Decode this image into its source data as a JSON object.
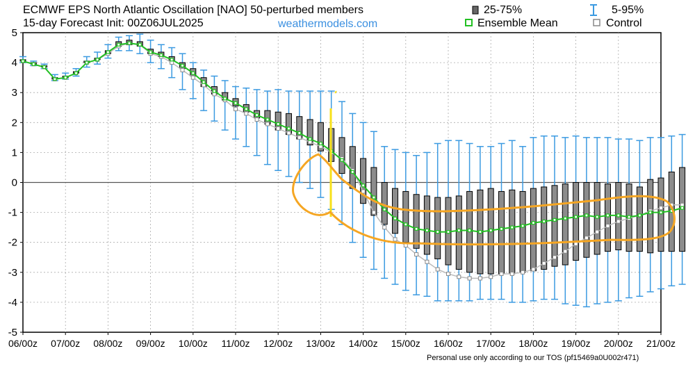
{
  "header": {
    "title_line1": "ECMWF EPS North Atlantic Oscillation [NAO]  50-perturbed members",
    "title_line2": "15-day Forecast Init: 00Z06JUL2025",
    "site": "weathermodels.com"
  },
  "legend": {
    "box": "25-75%",
    "whisker": "5-95%",
    "mean": "Ensemble Mean",
    "control": "Control"
  },
  "footer": "Personal use only according to our TOS (pf15469a0U002r471)",
  "colors": {
    "box_fill": "#8c8c8c",
    "whisker": "#3b9ae1",
    "mean": "#22c022",
    "control": "#999999",
    "annotation_orange": "#f5a623",
    "annotation_yellow": "#f7e01a"
  },
  "chart_data": {
    "type": "box",
    "ylim": [
      -5,
      5
    ],
    "yticks": [
      5,
      4,
      3,
      2,
      1,
      0,
      -1,
      -2,
      -3,
      -4,
      -5
    ],
    "xlim": [
      0,
      15
    ],
    "xtick_labels": [
      "06/00z",
      "07/00z",
      "08/00z",
      "09/00z",
      "10/00z",
      "11/00z",
      "12/00z",
      "13/00z",
      "14/00z",
      "15/00z",
      "16/00z",
      "17/00z",
      "18/00z",
      "19/00z",
      "20/00z",
      "21/00z"
    ],
    "step_days": 0.25,
    "series": [
      {
        "name": "25-75%",
        "kind": "box_range",
        "q25": [
          4.05,
          3.95,
          3.85,
          3.45,
          3.5,
          3.65,
          4.0,
          4.1,
          4.3,
          4.55,
          4.6,
          4.55,
          4.3,
          4.2,
          4.05,
          3.8,
          3.55,
          3.2,
          2.95,
          2.75,
          2.55,
          2.35,
          2.15,
          1.95,
          1.75,
          1.6,
          1.45,
          1.25,
          1.05,
          0.7,
          0.3,
          -0.2,
          -0.7,
          -1.1,
          -1.4,
          -1.7,
          -2.0,
          -2.2,
          -2.4,
          -2.55,
          -2.75,
          -2.9,
          -3.0,
          -3.05,
          -3.05,
          -3.05,
          -3.05,
          -3.0,
          -2.95,
          -2.9,
          -2.8,
          -2.75,
          -2.6,
          -2.5,
          -2.4,
          -2.3,
          -2.25,
          -2.3,
          -2.3,
          -2.35,
          -2.3,
          -2.3,
          -2.3
        ]
      },
      {
        "name": "25-75% upper",
        "kind": "box_upper",
        "q75": [
          4.1,
          4.0,
          3.9,
          3.5,
          3.55,
          3.7,
          4.05,
          4.15,
          4.4,
          4.7,
          4.75,
          4.7,
          4.45,
          4.35,
          4.2,
          4.0,
          3.8,
          3.5,
          3.2,
          3.0,
          2.8,
          2.6,
          2.4,
          2.4,
          2.35,
          2.3,
          2.2,
          2.1,
          2.0,
          1.8,
          1.5,
          1.2,
          0.8,
          0.5,
          0.0,
          -0.2,
          -0.3,
          -0.4,
          -0.45,
          -0.5,
          -0.5,
          -0.45,
          -0.3,
          -0.25,
          -0.2,
          -0.3,
          -0.25,
          -0.3,
          -0.2,
          -0.15,
          -0.1,
          -0.05,
          0.0,
          0.0,
          0.0,
          -0.05,
          0.0,
          -0.05,
          -0.15,
          0.1,
          0.15,
          0.35,
          0.5
        ]
      },
      {
        "name": "5-95%",
        "kind": "whisker",
        "p5": [
          4.0,
          3.9,
          3.8,
          3.4,
          3.45,
          3.55,
          3.85,
          3.95,
          4.15,
          4.4,
          4.4,
          4.3,
          4.0,
          3.8,
          3.5,
          3.1,
          2.8,
          2.4,
          2.05,
          1.75,
          1.45,
          1.2,
          0.9,
          0.6,
          0.4,
          0.2,
          0.0,
          -0.2,
          -0.5,
          -0.9,
          -1.4,
          -2.0,
          -2.5,
          -2.9,
          -3.2,
          -3.4,
          -3.6,
          -3.75,
          -3.8,
          -3.95,
          -3.95,
          -3.95,
          -3.95,
          -3.9,
          -3.9,
          -3.9,
          -4.0,
          -4.0,
          -3.95,
          -3.9,
          -3.9,
          -4.05,
          -4.1,
          -4.15,
          -4.05,
          -4.0,
          -3.95,
          -3.85,
          -3.8,
          -3.65,
          -3.55,
          -3.45,
          -3.4
        ],
        "p95": [
          4.2,
          4.05,
          3.95,
          3.6,
          3.65,
          3.8,
          4.2,
          4.35,
          4.6,
          4.85,
          4.9,
          4.95,
          4.75,
          4.6,
          4.5,
          4.3,
          4.0,
          3.75,
          3.55,
          3.4,
          3.2,
          3.15,
          3.1,
          3.05,
          3.1,
          3.05,
          3.05,
          3.05,
          3.05,
          3.05,
          2.7,
          2.3,
          2.0,
          1.7,
          1.2,
          1.1,
          1.0,
          0.9,
          1.0,
          1.3,
          1.4,
          1.4,
          1.3,
          1.2,
          1.2,
          1.3,
          1.4,
          1.2,
          1.5,
          1.55,
          1.55,
          1.5,
          1.55,
          1.5,
          1.5,
          1.5,
          1.45,
          1.45,
          1.4,
          1.5,
          1.5,
          1.55,
          1.6
        ]
      },
      {
        "name": "Ensemble Mean",
        "kind": "line",
        "values": [
          4.05,
          3.95,
          3.85,
          3.45,
          3.5,
          3.65,
          4.0,
          4.1,
          4.35,
          4.6,
          4.65,
          4.6,
          4.35,
          4.25,
          4.1,
          3.9,
          3.65,
          3.35,
          3.05,
          2.8,
          2.65,
          2.45,
          2.25,
          2.1,
          1.95,
          1.8,
          1.65,
          1.45,
          1.3,
          1.05,
          0.75,
          0.35,
          -0.1,
          -0.5,
          -0.9,
          -1.2,
          -1.4,
          -1.55,
          -1.6,
          -1.65,
          -1.65,
          -1.6,
          -1.6,
          -1.65,
          -1.6,
          -1.55,
          -1.5,
          -1.45,
          -1.35,
          -1.3,
          -1.25,
          -1.2,
          -1.15,
          -1.1,
          -1.15,
          -1.1,
          -1.1,
          -1.15,
          -1.1,
          -1.0,
          -1.0,
          -0.95,
          -0.85
        ]
      },
      {
        "name": "Control",
        "kind": "line",
        "values": [
          4.05,
          3.95,
          3.85,
          3.45,
          3.5,
          3.65,
          4.0,
          4.1,
          4.3,
          4.55,
          4.65,
          4.6,
          4.3,
          4.2,
          4.0,
          3.75,
          3.5,
          3.25,
          2.95,
          2.75,
          2.45,
          2.3,
          2.1,
          1.95,
          1.8,
          1.65,
          1.5,
          1.35,
          1.2,
          1.0,
          0.8,
          0.4,
          -0.3,
          -1.0,
          -1.5,
          -1.9,
          -2.1,
          -2.4,
          -2.65,
          -2.9,
          -3.05,
          -3.15,
          -3.2,
          -3.2,
          -3.15,
          -3.05,
          -3.05,
          -3.0,
          -2.9,
          -2.7,
          -2.5,
          -2.3,
          -2.05,
          -1.85,
          -1.65,
          -1.45,
          -1.3,
          -1.2,
          -1.1,
          -0.95,
          -0.85,
          -0.75,
          -0.75
        ]
      }
    ]
  }
}
